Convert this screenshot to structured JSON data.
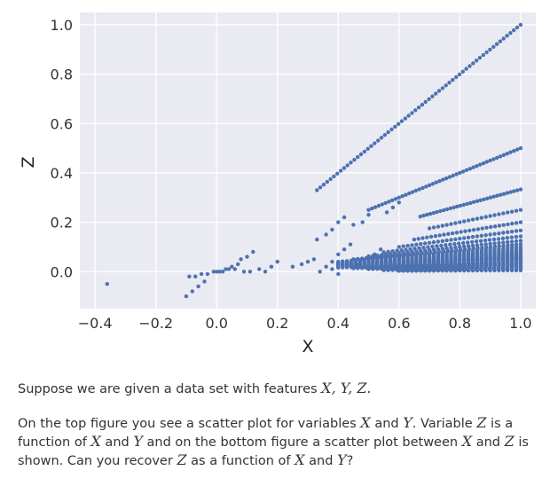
{
  "chart_data": {
    "type": "scatter",
    "title": "",
    "xlabel": "X",
    "ylabel": "Z",
    "xlim": [
      -0.45,
      1.05
    ],
    "ylim": [
      -0.15,
      1.05
    ],
    "xticks": [
      -0.4,
      -0.2,
      0.0,
      0.2,
      0.4,
      0.6,
      0.8,
      1.0
    ],
    "xtick_labels": [
      "−0.4",
      "−0.2",
      "0.0",
      "0.2",
      "0.4",
      "0.6",
      "0.8",
      "1.0"
    ],
    "yticks": [
      0.0,
      0.2,
      0.4,
      0.6,
      0.8,
      1.0
    ],
    "ytick_labels": [
      "0.0",
      "0.2",
      "0.4",
      "0.6",
      "0.8",
      "1.0"
    ],
    "grid": true,
    "legend": false,
    "background_color": "#eaeaf2",
    "marker_color": "#4c72b0",
    "lines": [
      {
        "slope": 1.0,
        "x_range": [
          0.33,
          1.0
        ]
      },
      {
        "slope": 0.5,
        "x_range": [
          0.5,
          1.0
        ]
      },
      {
        "slope": 0.333,
        "x_range": [
          0.67,
          1.0
        ]
      },
      {
        "slope": 0.25,
        "x_range": [
          0.7,
          1.0
        ]
      },
      {
        "slope": 0.2,
        "x_range": [
          0.65,
          1.0
        ]
      },
      {
        "slope": 0.1667,
        "x_range": [
          0.6,
          1.0
        ]
      },
      {
        "slope": 0.1429,
        "x_range": [
          0.55,
          1.0
        ]
      },
      {
        "slope": 0.125,
        "x_range": [
          0.5,
          1.0
        ]
      },
      {
        "slope": 0.1111,
        "x_range": [
          0.45,
          1.0
        ]
      },
      {
        "slope": 0.1,
        "x_range": [
          0.4,
          1.0
        ]
      },
      {
        "slope": 0.0909,
        "x_range": [
          0.4,
          1.0
        ]
      },
      {
        "slope": 0.0833,
        "x_range": [
          0.4,
          1.0
        ]
      },
      {
        "slope": 0.0769,
        "x_range": [
          0.4,
          1.0
        ]
      },
      {
        "slope": 0.0714,
        "x_range": [
          0.4,
          1.0
        ]
      },
      {
        "slope": 0.0667,
        "x_range": [
          0.4,
          1.0
        ]
      },
      {
        "slope": 0.0625,
        "x_range": [
          0.4,
          1.0
        ]
      },
      {
        "slope": 0.0588,
        "x_range": [
          0.4,
          1.0
        ]
      },
      {
        "slope": 0.0556,
        "x_range": [
          0.4,
          1.0
        ]
      },
      {
        "slope": 0.0526,
        "x_range": [
          0.4,
          1.0
        ]
      },
      {
        "slope": 0.05,
        "x_range": [
          0.4,
          1.0
        ]
      },
      {
        "slope": 0.045,
        "x_range": [
          0.4,
          1.0
        ]
      },
      {
        "slope": 0.04,
        "x_range": [
          0.4,
          1.0
        ]
      },
      {
        "slope": 0.035,
        "x_range": [
          0.45,
          1.0
        ]
      },
      {
        "slope": 0.03,
        "x_range": [
          0.45,
          1.0
        ]
      },
      {
        "slope": 0.025,
        "x_range": [
          0.5,
          1.0
        ]
      },
      {
        "slope": 0.02,
        "x_range": [
          0.5,
          1.0
        ]
      },
      {
        "slope": 0.015,
        "x_range": [
          0.55,
          1.0
        ]
      },
      {
        "slope": 0.01,
        "x_range": [
          0.55,
          1.0
        ]
      },
      {
        "slope": 0.005,
        "x_range": [
          0.6,
          1.0
        ]
      }
    ],
    "points": [
      [
        -0.36,
        -0.05
      ],
      [
        -0.09,
        -0.02
      ],
      [
        -0.07,
        -0.02
      ],
      [
        -0.05,
        -0.01
      ],
      [
        -0.03,
        -0.01
      ],
      [
        -0.01,
        0.0
      ],
      [
        0.01,
        0.0
      ],
      [
        0.03,
        0.01
      ],
      [
        0.05,
        0.02
      ],
      [
        0.07,
        0.03
      ],
      [
        0.08,
        0.05
      ],
      [
        0.1,
        0.06
      ],
      [
        0.12,
        0.08
      ],
      [
        -0.1,
        -0.1
      ],
      [
        -0.08,
        -0.08
      ],
      [
        -0.06,
        -0.06
      ],
      [
        -0.04,
        -0.04
      ],
      [
        0.0,
        0.0
      ],
      [
        0.02,
        0.0
      ],
      [
        0.04,
        0.01
      ],
      [
        0.06,
        0.01
      ],
      [
        0.09,
        0.0
      ],
      [
        0.11,
        0.0
      ],
      [
        0.14,
        0.01
      ],
      [
        0.16,
        0.0
      ],
      [
        0.18,
        0.02
      ],
      [
        0.2,
        0.04
      ],
      [
        0.25,
        0.02
      ],
      [
        0.28,
        0.03
      ],
      [
        0.3,
        0.04
      ],
      [
        0.32,
        0.05
      ],
      [
        0.34,
        0.0
      ],
      [
        0.36,
        0.02
      ],
      [
        0.38,
        0.04
      ],
      [
        0.4,
        0.07
      ],
      [
        0.42,
        0.09
      ],
      [
        0.44,
        0.11
      ],
      [
        0.33,
        0.13
      ],
      [
        0.36,
        0.15
      ],
      [
        0.38,
        0.17
      ],
      [
        0.4,
        0.2
      ],
      [
        0.42,
        0.22
      ],
      [
        0.45,
        0.19
      ],
      [
        0.48,
        0.2
      ],
      [
        0.5,
        0.23
      ],
      [
        0.56,
        0.24
      ],
      [
        0.58,
        0.26
      ],
      [
        0.6,
        0.28
      ],
      [
        0.38,
        0.01
      ],
      [
        0.4,
        -0.01
      ],
      [
        0.46,
        0.03
      ],
      [
        0.48,
        0.05
      ],
      [
        0.52,
        0.07
      ],
      [
        0.54,
        0.09
      ]
    ]
  },
  "question": {
    "intro": "Suppose we are given a data set with features ",
    "features": "X, Y, Z.",
    "p2_part1": "On the top figure you see a scatter plot for variables ",
    "var_x": "X",
    "p2_and": " and ",
    "var_y": "Y",
    "p2_part2": ". Variable ",
    "var_z": "Z",
    "p2_part3": " is a function of ",
    "var_x2": "X",
    "p2_part4": " and ",
    "var_y2": "Y",
    "p2_part5": " and on the bottom figure a scatter plot between ",
    "var_x3": "X",
    "p2_and2": " and ",
    "var_z2": "Z",
    "p2_part6": " is shown. Can you recover ",
    "var_z3": "Z",
    "p2_part7": " as a function of ",
    "var_x4": "X",
    "p2_and3": " and ",
    "var_y3": "Y",
    "p2_end": "?"
  }
}
